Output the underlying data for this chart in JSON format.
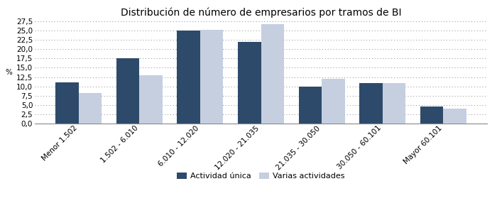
{
  "title": "Distribución de número de empresarios por tramos de BI",
  "categories": [
    "Menor 1.502",
    "1.502 - 6.010",
    "6.010 - 12.020",
    "12.020 - 21.035",
    "21.035 - 30.050",
    "30.050 - 60.101",
    "Mayor 60.101"
  ],
  "actividad_unica": [
    11.0,
    17.5,
    25.0,
    22.0,
    10.0,
    10.8,
    4.5
  ],
  "varias_actividades": [
    8.3,
    13.0,
    25.3,
    26.8,
    12.0,
    10.8,
    4.0
  ],
  "color_actividad_unica": "#2E4A6B",
  "color_varias_actividades": "#C5CFE0",
  "ylabel": "%",
  "ylim": [
    0,
    27.5
  ],
  "yticks": [
    0.0,
    2.5,
    5.0,
    7.5,
    10.0,
    12.5,
    15.0,
    17.5,
    20.0,
    22.5,
    25.0,
    27.5
  ],
  "legend_labels": [
    "Actividad única",
    "Varias actividades"
  ],
  "background_color": "#FFFFFF",
  "title_fontsize": 10,
  "axis_fontsize": 7.5,
  "legend_fontsize": 8,
  "bar_width": 0.38
}
